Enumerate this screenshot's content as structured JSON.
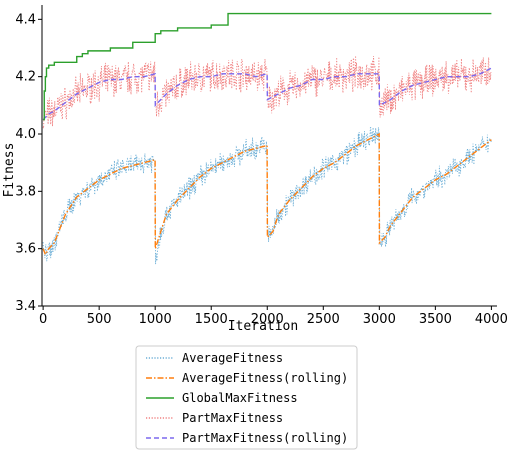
{
  "chart_data": {
    "type": "line",
    "title": "",
    "xlabel": "Iteration",
    "ylabel": "Fitness",
    "xlim": [
      -10,
      4050
    ],
    "ylim": [
      3.4,
      4.45
    ],
    "xticks": [
      0,
      500,
      1000,
      1500,
      2000,
      2500,
      3000,
      3500,
      4000
    ],
    "yticks": [
      3.4,
      3.6,
      3.8,
      4.0,
      4.2,
      4.4
    ],
    "grid": false,
    "legend_position": "below",
    "series": [
      {
        "name": "AverageFitness",
        "style": "dotted",
        "color": "#6baed6",
        "noise": 0.03,
        "x": [
          0,
          20,
          50,
          100,
          150,
          200,
          300,
          400,
          500,
          600,
          700,
          800,
          900,
          999,
          1001,
          1050,
          1100,
          1200,
          1300,
          1400,
          1500,
          1600,
          1700,
          1800,
          1900,
          1999,
          2001,
          2050,
          2100,
          2200,
          2300,
          2400,
          2500,
          2600,
          2700,
          2800,
          2900,
          2999,
          3001,
          3050,
          3100,
          3200,
          3300,
          3400,
          3500,
          3600,
          3700,
          3800,
          3900,
          4000
        ],
        "y": [
          3.6,
          3.58,
          3.6,
          3.62,
          3.67,
          3.72,
          3.78,
          3.81,
          3.84,
          3.86,
          3.88,
          3.89,
          3.9,
          3.91,
          3.56,
          3.66,
          3.72,
          3.77,
          3.81,
          3.85,
          3.88,
          3.9,
          3.92,
          3.94,
          3.95,
          3.96,
          3.64,
          3.66,
          3.72,
          3.77,
          3.81,
          3.85,
          3.88,
          3.9,
          3.93,
          3.96,
          3.98,
          4.0,
          3.62,
          3.64,
          3.68,
          3.73,
          3.78,
          3.81,
          3.84,
          3.86,
          3.89,
          3.92,
          3.95,
          3.98
        ]
      },
      {
        "name": "AverageFitness(rolling)",
        "style": "dashdot",
        "color": "#ff7f0e",
        "noise": 0,
        "x": [
          0,
          20,
          50,
          100,
          150,
          200,
          300,
          400,
          500,
          600,
          700,
          800,
          900,
          999,
          1001,
          1050,
          1100,
          1200,
          1300,
          1400,
          1500,
          1600,
          1700,
          1800,
          1900,
          1999,
          2001,
          2050,
          2100,
          2200,
          2300,
          2400,
          2500,
          2600,
          2700,
          2800,
          2900,
          2999,
          3001,
          3050,
          3100,
          3200,
          3300,
          3400,
          3500,
          3600,
          3700,
          3800,
          3900,
          4000
        ],
        "y": [
          3.6,
          3.58,
          3.6,
          3.62,
          3.67,
          3.72,
          3.78,
          3.81,
          3.84,
          3.86,
          3.88,
          3.89,
          3.9,
          3.91,
          3.6,
          3.66,
          3.72,
          3.77,
          3.81,
          3.85,
          3.88,
          3.9,
          3.92,
          3.94,
          3.95,
          3.96,
          3.64,
          3.66,
          3.72,
          3.77,
          3.81,
          3.85,
          3.88,
          3.9,
          3.93,
          3.96,
          3.98,
          4.0,
          3.62,
          3.64,
          3.68,
          3.73,
          3.78,
          3.81,
          3.84,
          3.86,
          3.89,
          3.92,
          3.95,
          3.98
        ]
      },
      {
        "name": "GlobalMaxFitness",
        "style": "solid",
        "color": "#2ca02c",
        "noise": 0,
        "step": true,
        "x": [
          0,
          10,
          20,
          30,
          50,
          100,
          250,
          300,
          350,
          400,
          600,
          800,
          1000,
          1050,
          1200,
          1500,
          1650,
          4000
        ],
        "y": [
          4.05,
          4.15,
          4.2,
          4.23,
          4.24,
          4.25,
          4.25,
          4.27,
          4.28,
          4.29,
          4.3,
          4.32,
          4.35,
          4.36,
          4.37,
          4.38,
          4.42,
          4.42
        ]
      },
      {
        "name": "PartMaxFitness",
        "style": "dotted",
        "color": "#f08080",
        "noise": 0.045,
        "x": [
          0,
          50,
          100,
          200,
          300,
          400,
          500,
          600,
          700,
          800,
          900,
          999,
          1001,
          1050,
          1100,
          1200,
          1300,
          1400,
          1500,
          1600,
          1700,
          1800,
          1900,
          1999,
          2001,
          2100,
          2200,
          2300,
          2400,
          2500,
          2600,
          2700,
          2800,
          2900,
          2999,
          3001,
          3100,
          3200,
          3300,
          3400,
          3500,
          3600,
          3700,
          3800,
          3900,
          4000
        ],
        "y": [
          4.05,
          4.07,
          4.08,
          4.11,
          4.14,
          4.16,
          4.18,
          4.19,
          4.19,
          4.2,
          4.2,
          4.21,
          4.1,
          4.12,
          4.14,
          4.17,
          4.19,
          4.2,
          4.2,
          4.21,
          4.21,
          4.21,
          4.2,
          4.21,
          4.12,
          4.14,
          4.16,
          4.17,
          4.19,
          4.19,
          4.2,
          4.2,
          4.21,
          4.21,
          4.21,
          4.1,
          4.12,
          4.15,
          4.17,
          4.18,
          4.19,
          4.2,
          4.2,
          4.2,
          4.21,
          4.23
        ]
      },
      {
        "name": "PartMaxFitness(rolling)",
        "style": "dashed",
        "color": "#7b68ee",
        "noise": 0,
        "x": [
          0,
          50,
          100,
          200,
          300,
          400,
          500,
          600,
          700,
          800,
          900,
          999,
          1001,
          1050,
          1100,
          1200,
          1300,
          1400,
          1500,
          1600,
          1700,
          1800,
          1900,
          1999,
          2001,
          2100,
          2200,
          2300,
          2400,
          2500,
          2600,
          2700,
          2800,
          2900,
          2999,
          3001,
          3100,
          3200,
          3300,
          3400,
          3500,
          3600,
          3700,
          3800,
          3900,
          4000
        ],
        "y": [
          4.05,
          4.07,
          4.08,
          4.11,
          4.14,
          4.16,
          4.18,
          4.19,
          4.19,
          4.2,
          4.2,
          4.21,
          4.1,
          4.12,
          4.14,
          4.17,
          4.19,
          4.2,
          4.2,
          4.21,
          4.21,
          4.21,
          4.2,
          4.21,
          4.12,
          4.14,
          4.16,
          4.17,
          4.19,
          4.19,
          4.2,
          4.2,
          4.21,
          4.21,
          4.21,
          4.1,
          4.12,
          4.15,
          4.17,
          4.18,
          4.19,
          4.2,
          4.2,
          4.2,
          4.21,
          4.23
        ]
      }
    ]
  }
}
